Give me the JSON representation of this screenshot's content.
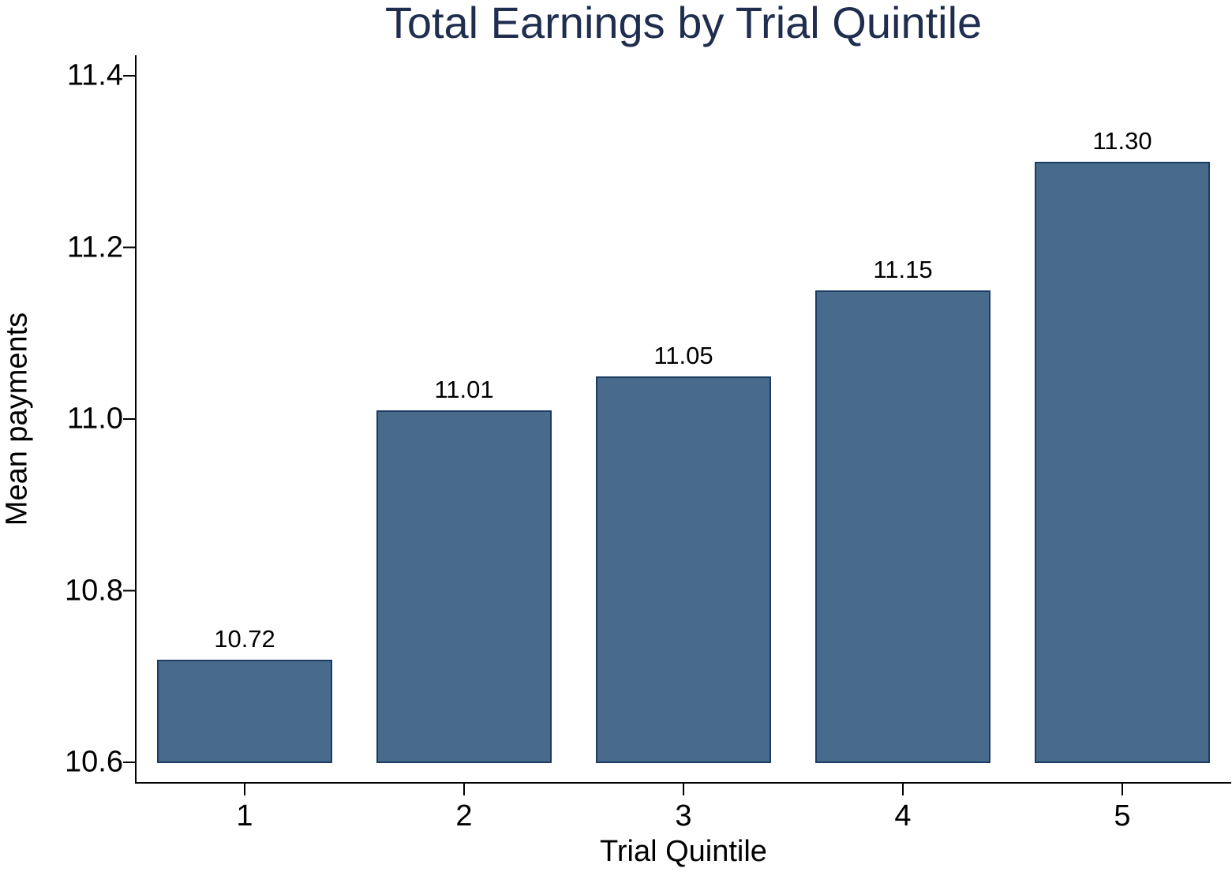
{
  "chart_data": {
    "type": "bar",
    "title": "Total Earnings by Trial Quintile",
    "xlabel": "Trial Quintile",
    "ylabel": "Mean payments",
    "categories": [
      "1",
      "2",
      "3",
      "4",
      "5"
    ],
    "values": [
      10.72,
      11.01,
      11.05,
      11.15,
      11.3
    ],
    "value_labels": [
      "10.72",
      "11.01",
      "11.05",
      "11.15",
      "11.30"
    ],
    "ylim": [
      10.6,
      11.42
    ],
    "yticks": [
      "10.6",
      "10.8",
      "11.0",
      "11.2",
      "11.4"
    ],
    "grid": false,
    "legend": null,
    "colors": {
      "bar_fill": "#486b8b",
      "bar_edge": "#1b3d63",
      "title": "#1f2d4f"
    }
  }
}
